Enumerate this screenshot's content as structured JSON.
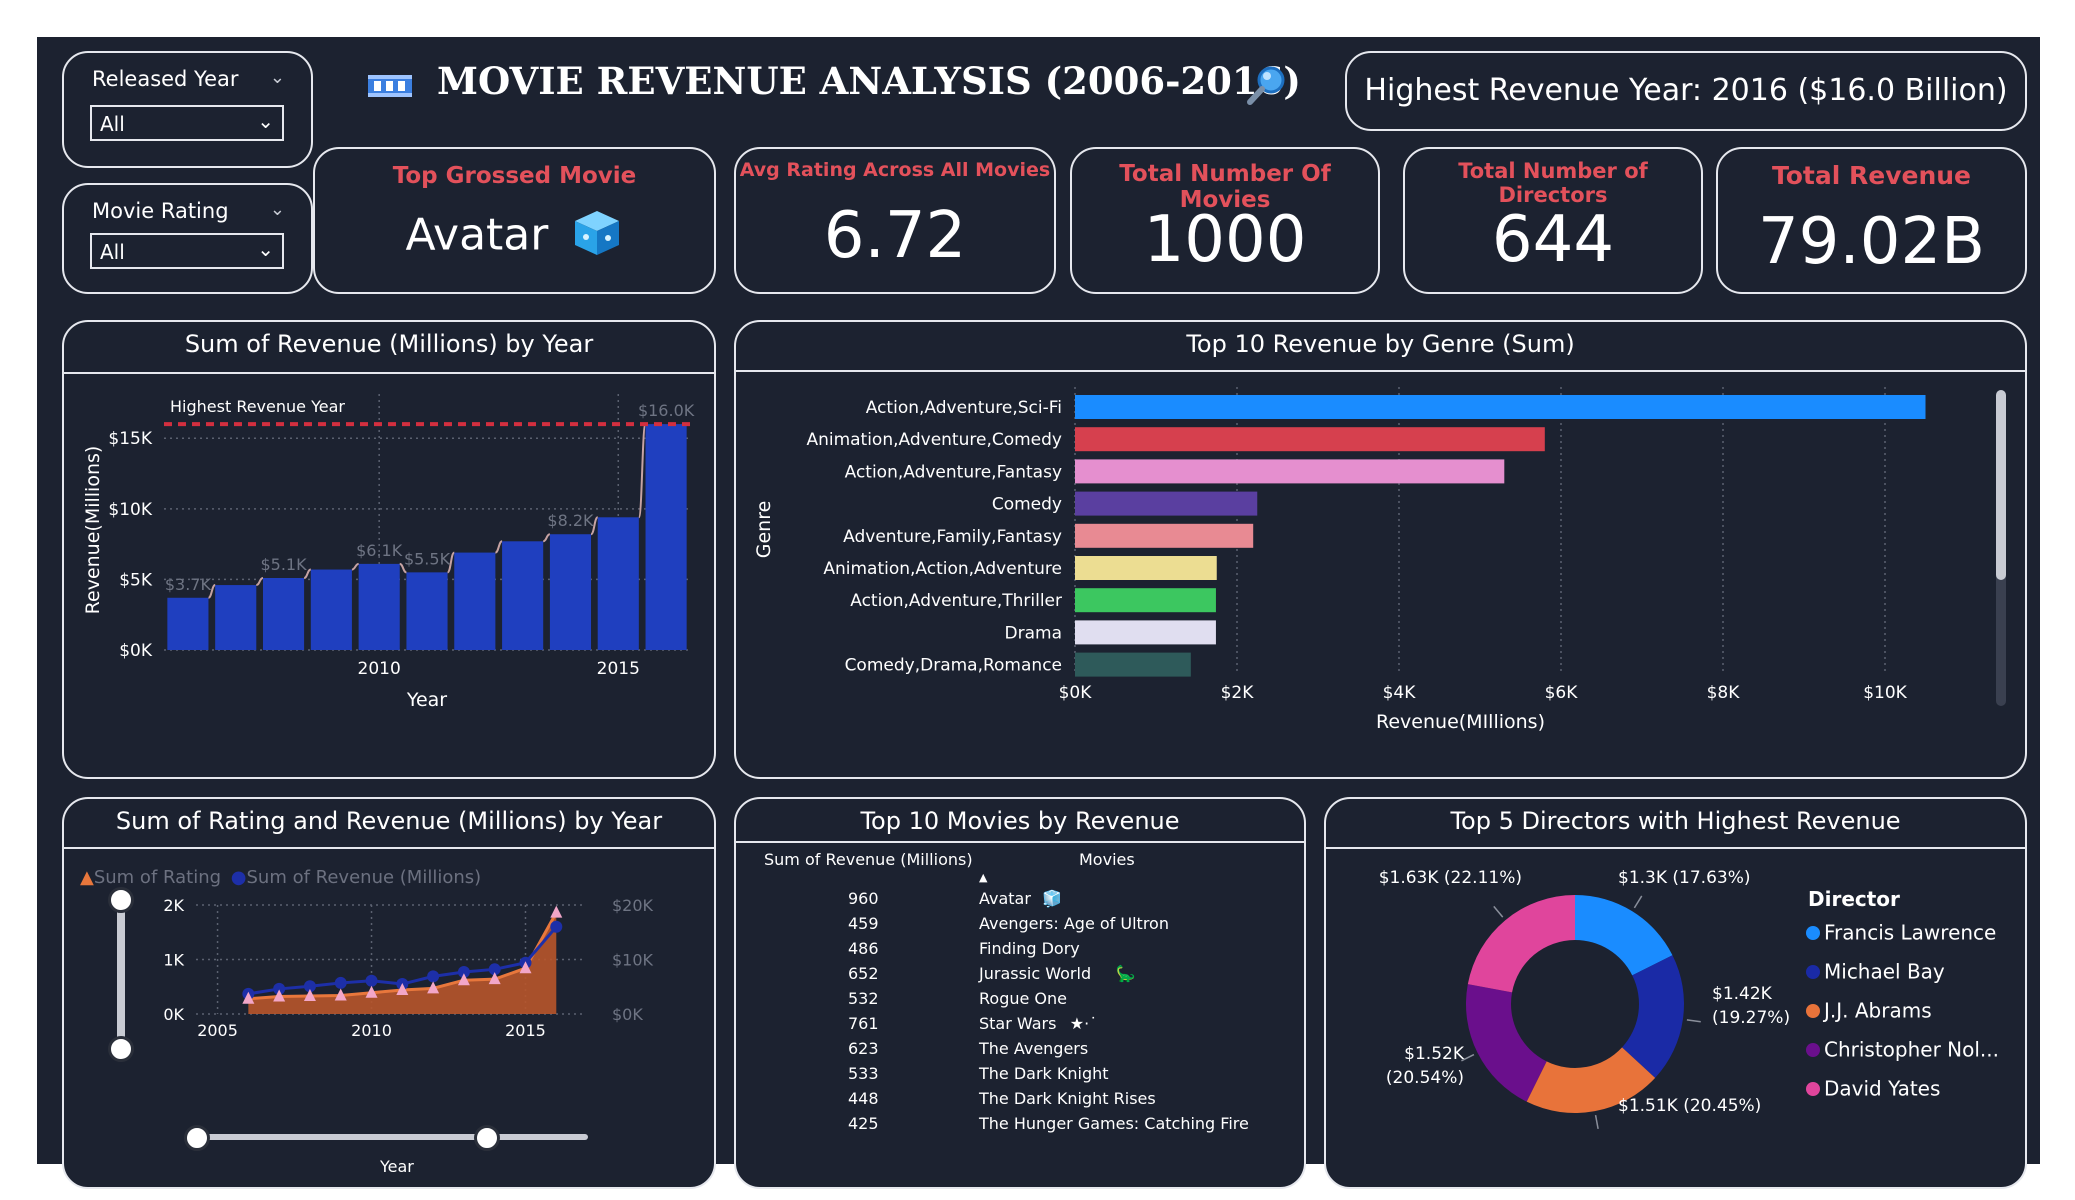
{
  "header": {
    "title": "MOVIE REVENUE ANALYSIS (2006-2016)",
    "highest_year_banner": "Highest Revenue Year: 2016 ($16.0 Billion)"
  },
  "slicers": [
    {
      "label": "Released Year",
      "value": "All"
    },
    {
      "label": "Movie Rating",
      "value": "All"
    }
  ],
  "kpis": {
    "top_grossed": {
      "title": "Top Grossed Movie",
      "value": "Avatar"
    },
    "avg_rating": {
      "title": "Avg Rating Across All Movies",
      "value": "6.72"
    },
    "total_movies": {
      "title": "Total Number Of Movies",
      "value": "1000"
    },
    "total_directors": {
      "title": "Total Number of Directors",
      "value": "644"
    },
    "total_revenue": {
      "title": "Total Revenue",
      "value": "79.02B"
    }
  },
  "colors": {
    "bg": "#1c2230",
    "accent_red": "#e3515b",
    "bar_blue": "#1f3fbf",
    "highlight_line": "#d32f3f"
  },
  "chart_data": [
    {
      "type": "bar",
      "title": "Sum of Revenue (Millions) by Year",
      "xlabel": "Year",
      "ylabel": "Revenue(Millions)",
      "x": [
        2006,
        2007,
        2008,
        2009,
        2010,
        2011,
        2012,
        2013,
        2014,
        2015,
        2016
      ],
      "values": [
        3700,
        4600,
        5100,
        5700,
        6100,
        5500,
        6900,
        7700,
        8200,
        9400,
        16000
      ],
      "data_labels": [
        "$3.7K",
        "",
        "$5.1K",
        "",
        "$6.1K",
        "$5.5K",
        "",
        "",
        "$8.2K",
        "",
        "$16.0K"
      ],
      "x_ticks": [
        "2010",
        "2015"
      ],
      "y_ticks": [
        "$0K",
        "$5K",
        "$10K",
        "$15K"
      ],
      "ylim": [
        0,
        17000
      ],
      "reference_line": {
        "label": "Highest Revenue Year",
        "value": 16000
      },
      "grid": true
    },
    {
      "type": "bar",
      "orientation": "horizontal",
      "title": "Top 10 Revenue by Genre (Sum)",
      "xlabel": "Revenue(MIllions)",
      "ylabel": "Genre",
      "categories": [
        "Action,Adventure,Sci-Fi",
        "Animation,Adventure,Comedy",
        "Action,Adventure,Fantasy",
        "Comedy",
        "Adventure,Family,Fantasy",
        "Animation,Action,Adventure",
        "Action,Adventure,Thriller",
        "Drama",
        "Comedy,Drama,Romance"
      ],
      "values": [
        10500,
        5800,
        5300,
        2250,
        2200,
        1750,
        1740,
        1740,
        1430
      ],
      "colors": [
        "#1a8cff",
        "#d6404e",
        "#e58fcf",
        "#5a3fa0",
        "#e88a93",
        "#ecdd92",
        "#3cc760",
        "#e0def0",
        "#2e5a5a"
      ],
      "x_ticks": [
        "$0K",
        "$2K",
        "$4K",
        "$6K",
        "$8K",
        "$10K"
      ],
      "xlim": [
        0,
        11000
      ],
      "grid": true
    },
    {
      "type": "area",
      "title": "Sum of Rating and Revenue (Millions) by Year",
      "xlabel": "Year",
      "x": [
        2006,
        2007,
        2008,
        2009,
        2010,
        2011,
        2012,
        2013,
        2014,
        2015,
        2016
      ],
      "series": [
        {
          "name": "Sum of Rating",
          "axis": "left",
          "color": "#e8773c",
          "values": [
            280,
            320,
            330,
            340,
            390,
            440,
            470,
            620,
            640,
            840,
            1860
          ]
        },
        {
          "name": "Sum of Revenue (Millions)",
          "axis": "right",
          "color": "#1d2fa8",
          "values": [
            3700,
            4600,
            5100,
            5700,
            6100,
            5500,
            6900,
            7700,
            8200,
            9400,
            16000
          ]
        }
      ],
      "x_ticks": [
        "2005",
        "2010",
        "2015"
      ],
      "y_left_ticks": [
        "0K",
        "1K",
        "2K"
      ],
      "y_right_ticks": [
        "$0K",
        "$10K",
        "$20K"
      ],
      "ylim_left": [
        0,
        2000
      ],
      "ylim_right": [
        0,
        20000
      ],
      "legend_position": "top-left",
      "grid": true
    },
    {
      "type": "table",
      "title": "Top 10 Movies by Revenue",
      "columns": [
        "Sum of Revenue (Millions)",
        "Movies"
      ],
      "rows": [
        {
          "revenue": "960",
          "movie": "Avatar",
          "emoji": "🧊"
        },
        {
          "revenue": "459",
          "movie": "Avengers: Age of Ultron",
          "emoji": ""
        },
        {
          "revenue": "486",
          "movie": "Finding Dory",
          "emoji": ""
        },
        {
          "revenue": "652",
          "movie": "Jurassic World",
          "emoji": "🦕"
        },
        {
          "revenue": "532",
          "movie": "Rogue One",
          "emoji": ""
        },
        {
          "revenue": "761",
          "movie": "Star Wars",
          "emoji": "★·˙"
        },
        {
          "revenue": "623",
          "movie": "The Avengers",
          "emoji": ""
        },
        {
          "revenue": "533",
          "movie": "The Dark Knight",
          "emoji": ""
        },
        {
          "revenue": "448",
          "movie": "The Dark Knight Rises",
          "emoji": ""
        },
        {
          "revenue": "425",
          "movie": "The Hunger Games: Catching Fire",
          "emoji": ""
        }
      ]
    },
    {
      "type": "pie",
      "donut": true,
      "title": "Top 5 Directors with Highest Revenue",
      "legend_title": "Director",
      "legend_position": "right",
      "categories": [
        "Francis Lawrence",
        "Michael Bay",
        "J.J. Abrams",
        "Christopher Nol...",
        "David Yates"
      ],
      "values": [
        1300,
        1420,
        1510,
        1520,
        1630
      ],
      "percents": [
        17.63,
        19.27,
        20.45,
        20.54,
        22.11
      ],
      "labels": [
        "$1.3K (17.63%)",
        "$1.42K\n(19.27%)",
        "$1.51K (20.45%)",
        "$1.52K\n(20.54%)",
        "$1.63K (22.11%)"
      ],
      "colors": [
        "#1a8cff",
        "#1a2aa6",
        "#e8733a",
        "#6a0f8c",
        "#e0459c"
      ]
    }
  ]
}
